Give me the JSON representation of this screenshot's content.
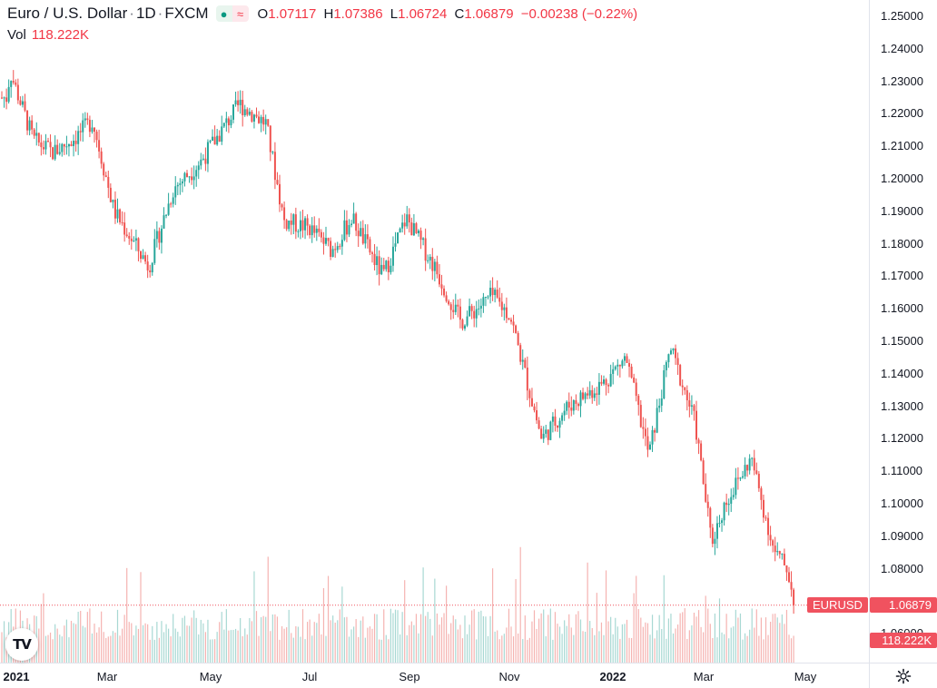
{
  "legend": {
    "symbol": "Euro / U.S. Dollar",
    "interval": "1D",
    "exchange": "FXCM",
    "separator": "·",
    "market_open_icon": "●",
    "delayed_icon": "≈",
    "open_label": "O",
    "open_value": "1.07117",
    "high_label": "H",
    "high_value": "1.07386",
    "low_label": "L",
    "low_value": "1.06724",
    "close_label": "C",
    "close_value": "1.06879",
    "change": "−0.00238 (−0.22%)",
    "volume_label": "Vol",
    "volume_value": "118.222K"
  },
  "price_scale": {
    "labels": [
      "1.25000",
      "1.24000",
      "1.23000",
      "1.22000",
      "1.21000",
      "1.20000",
      "1.19000",
      "1.18000",
      "1.17000",
      "1.16000",
      "1.15000",
      "1.14000",
      "1.13000",
      "1.12000",
      "1.11000",
      "1.10000",
      "1.09000",
      "1.08000",
      "1.06000"
    ]
  },
  "time_scale": {
    "labels": [
      {
        "text": "2021",
        "bold": true
      },
      {
        "text": "Mar",
        "bold": false
      },
      {
        "text": "May",
        "bold": false
      },
      {
        "text": "Jul",
        "bold": false
      },
      {
        "text": "Sep",
        "bold": false
      },
      {
        "text": "Nov",
        "bold": false
      },
      {
        "text": "2022",
        "bold": true
      },
      {
        "text": "Mar",
        "bold": false
      },
      {
        "text": "May",
        "bold": false
      }
    ]
  },
  "last_price_tag": {
    "symbol": "EURUSD",
    "value": "1.06879"
  },
  "volume_tag": {
    "value": "118.222K"
  },
  "logo": {
    "text": "TV"
  },
  "colors": {
    "up": "#26a69a",
    "down": "#ef5350",
    "vol_up": "#a8d8d3",
    "vol_down": "#f5b3b1",
    "tag": "#f0525f"
  },
  "chart_data": {
    "type": "candlestick",
    "series_x": "daily candles, Jan 2021 – Apr 2022",
    "closes_trend": [
      [
        "2021-01-04",
        1.225
      ],
      [
        "2021-01-06",
        1.233
      ],
      [
        "2021-01-20",
        1.212
      ],
      [
        "2021-02-01",
        1.208
      ],
      [
        "2021-02-15",
        1.213
      ],
      [
        "2021-02-25",
        1.218
      ],
      [
        "2021-03-10",
        1.19
      ],
      [
        "2021-03-31",
        1.173
      ],
      [
        "2021-04-15",
        1.197
      ],
      [
        "2021-05-01",
        1.205
      ],
      [
        "2021-05-25",
        1.223
      ],
      [
        "2021-06-10",
        1.217
      ],
      [
        "2021-06-21",
        1.187
      ],
      [
        "2021-07-06",
        1.185
      ],
      [
        "2021-07-20",
        1.178
      ],
      [
        "2021-08-01",
        1.188
      ],
      [
        "2021-08-20",
        1.17
      ],
      [
        "2021-09-03",
        1.188
      ],
      [
        "2021-09-20",
        1.173
      ],
      [
        "2021-10-06",
        1.156
      ],
      [
        "2021-10-25",
        1.164
      ],
      [
        "2021-11-05",
        1.158
      ],
      [
        "2021-11-24",
        1.12
      ],
      [
        "2021-12-10",
        1.13
      ],
      [
        "2021-12-31",
        1.137
      ],
      [
        "2022-01-14",
        1.145
      ],
      [
        "2022-01-28",
        1.115
      ],
      [
        "2022-02-10",
        1.148
      ],
      [
        "2022-02-25",
        1.125
      ],
      [
        "2022-03-07",
        1.088
      ],
      [
        "2022-03-15",
        1.1
      ],
      [
        "2022-03-31",
        1.114
      ],
      [
        "2022-04-14",
        1.085
      ],
      [
        "2022-04-22",
        1.08
      ],
      [
        "2022-04-26",
        1.0688
      ]
    ],
    "ylim": [
      1.06,
      1.25
    ],
    "last": 1.06879,
    "volume_last": "118.222K"
  }
}
